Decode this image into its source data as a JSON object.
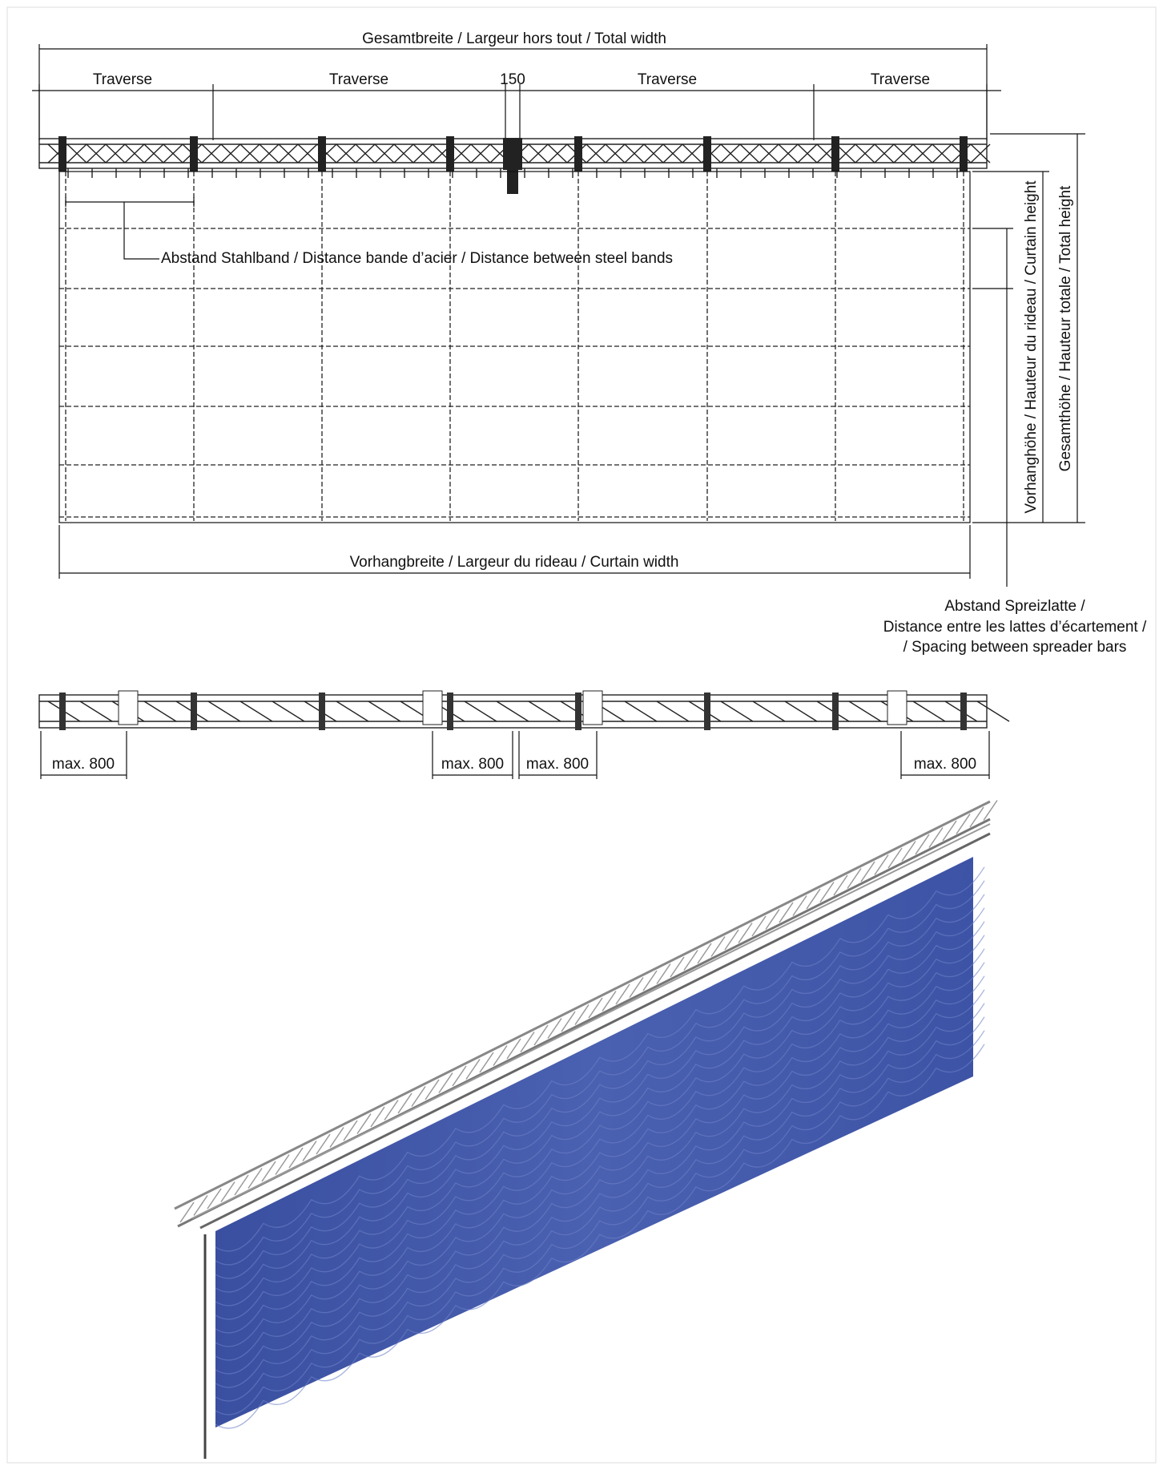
{
  "top_view": {
    "total_width": "Gesamtbreite /  Largeur hors tout / Total width",
    "segments": [
      "Traverse",
      "Traverse",
      "150",
      "Traverse",
      "Traverse"
    ],
    "steel_band": "Abstand Stahlband / Distance bande d’acier / Distance between steel bands",
    "curtain_height": "Vorhanghöhe / Hauteur du rideau / Curtain height",
    "total_height": "Gesamthöhe / Hauteur totale / Total height",
    "curtain_width": "Vorhangbreite /  Largeur du rideau /  Curtain width",
    "spreader_bars": [
      "Abstand Spreizlatte /",
      "Distance entre les lattes d’écartement /",
      "/ Spacing between spreader bars"
    ]
  },
  "plan_view": {
    "max_labels": [
      "max. 800",
      "max. 800",
      "max. 800",
      "max. 800"
    ]
  }
}
